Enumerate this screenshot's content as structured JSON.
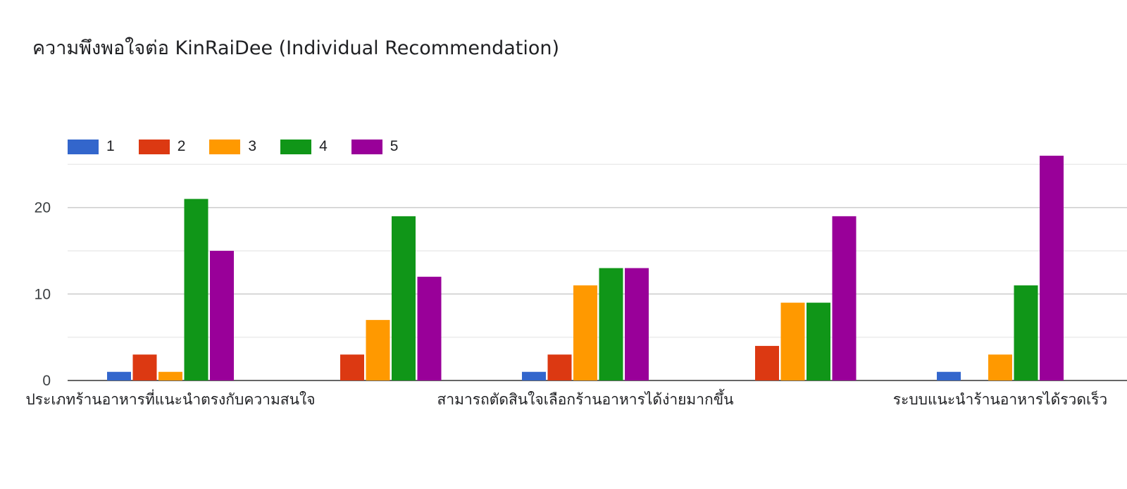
{
  "chart_data": {
    "type": "bar",
    "title": "ความพึงพอใจต่อ KinRaiDee (Individual Recommendation)",
    "legend_position": "top-left",
    "categories": [
      "ประเภทร้านอาหารที่แนะนำตรงกับความสนใจ",
      "",
      "สามารถตัดสินใจเลือกร้านอาหารได้ง่ายมากขึ้น",
      "",
      "ระบบแนะนำร้านอาหารได้รวดเร็ว"
    ],
    "series": [
      {
        "name": "1",
        "color": "#3366cc",
        "values": [
          1,
          0,
          1,
          0,
          1
        ]
      },
      {
        "name": "2",
        "color": "#dc3912",
        "values": [
          3,
          3,
          3,
          4,
          0
        ]
      },
      {
        "name": "3",
        "color": "#ff9900",
        "values": [
          1,
          7,
          11,
          9,
          3
        ]
      },
      {
        "name": "4",
        "color": "#109618",
        "values": [
          21,
          19,
          13,
          9,
          11
        ]
      },
      {
        "name": "5",
        "color": "#990099",
        "values": [
          15,
          12,
          13,
          19,
          26
        ]
      }
    ],
    "y_ticks": [
      0,
      10,
      20
    ],
    "ylim": [
      0,
      25
    ],
    "grid": true
  }
}
